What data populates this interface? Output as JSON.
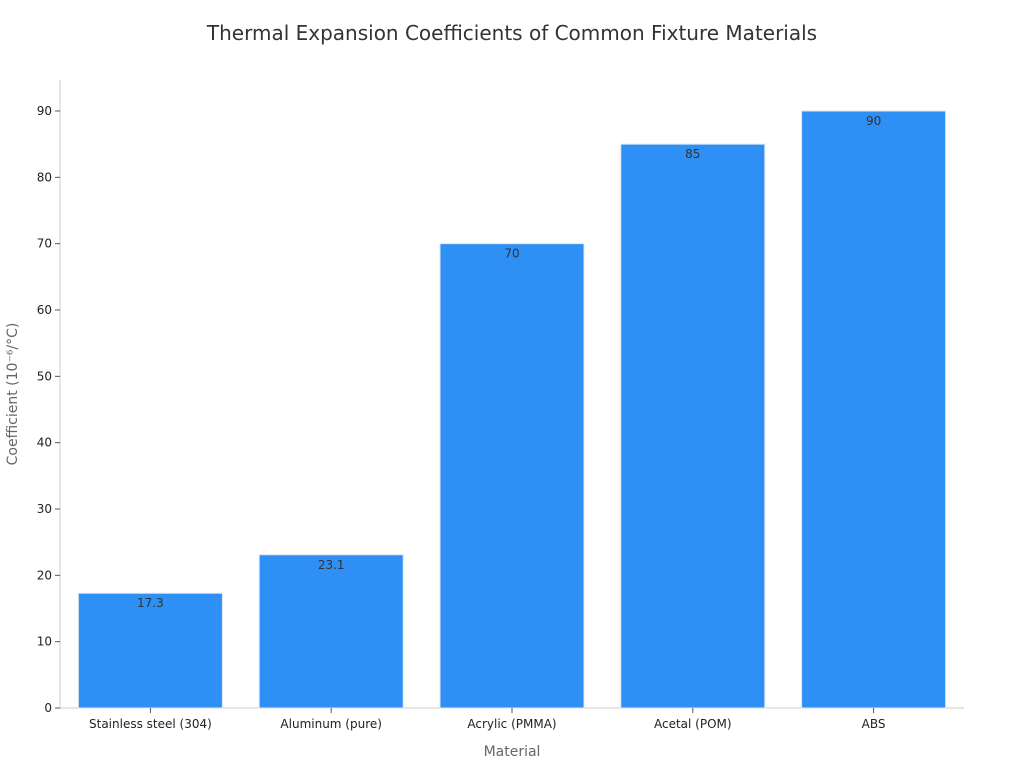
{
  "chart_data": {
    "type": "bar",
    "title": "Thermal Expansion Coefficients of Common Fixture Materials",
    "xlabel": "Material",
    "ylabel": "Coefficient (10⁻⁶/°C)",
    "categories": [
      "Stainless steel (304)",
      "Aluminum (pure)",
      "Acrylic (PMMA)",
      "Acetal (POM)",
      "ABS"
    ],
    "values": [
      17.3,
      23.1,
      70,
      85,
      90
    ],
    "data_labels": [
      "17.3",
      "23.1",
      "70",
      "85",
      "90"
    ],
    "ylim": [
      0,
      95
    ],
    "yticks": [
      0,
      10,
      20,
      30,
      40,
      50,
      60,
      70,
      80,
      90
    ],
    "grid": false,
    "bar_color": "#2E8FF5",
    "bar_edge_color": "#DCE6F2"
  }
}
